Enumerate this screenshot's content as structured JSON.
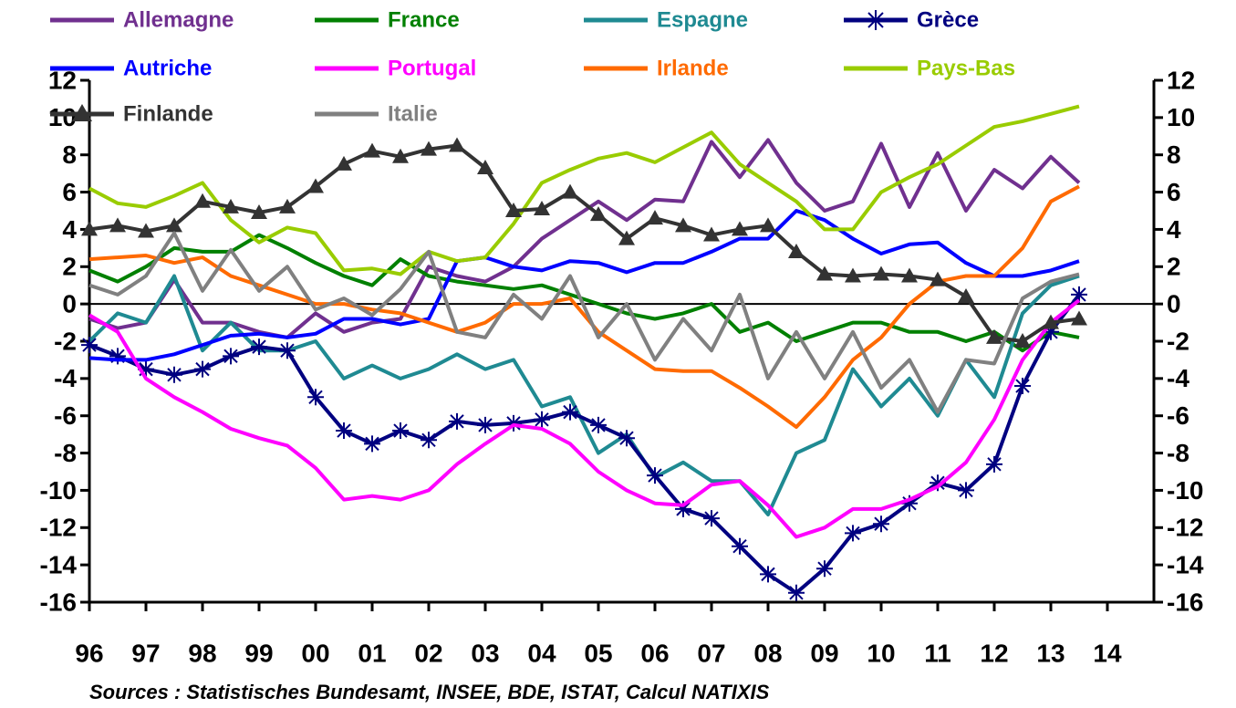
{
  "chart_data": {
    "type": "line",
    "source": "Sources : Statistisches Bundesamt, INSEE, BDE, ISTAT, Calcul NATIXIS",
    "x": [
      1996,
      1996.5,
      1997,
      1997.5,
      1998,
      1998.5,
      1999,
      1999.5,
      2000,
      2000.5,
      2001,
      2001.5,
      2002,
      2002.5,
      2003,
      2003.5,
      2004,
      2004.5,
      2005,
      2005.5,
      2006,
      2006.5,
      2007,
      2007.5,
      2008,
      2008.5,
      2009,
      2009.5,
      2010,
      2010.5,
      2011,
      2011.5,
      2012,
      2012.5,
      2013,
      2013.5
    ],
    "xlim": [
      1996,
      2014.8
    ],
    "xticks": [
      {
        "value": 1996,
        "label": "96"
      },
      {
        "value": 1997,
        "label": "97"
      },
      {
        "value": 1998,
        "label": "98"
      },
      {
        "value": 1999,
        "label": "99"
      },
      {
        "value": 2000,
        "label": "00"
      },
      {
        "value": 2001,
        "label": "01"
      },
      {
        "value": 2002,
        "label": "02"
      },
      {
        "value": 2003,
        "label": "03"
      },
      {
        "value": 2004,
        "label": "04"
      },
      {
        "value": 2005,
        "label": "05"
      },
      {
        "value": 2006,
        "label": "06"
      },
      {
        "value": 2007,
        "label": "07"
      },
      {
        "value": 2008,
        "label": "08"
      },
      {
        "value": 2009,
        "label": "09"
      },
      {
        "value": 2010,
        "label": "10"
      },
      {
        "value": 2011,
        "label": "11"
      },
      {
        "value": 2012,
        "label": "12"
      },
      {
        "value": 2013,
        "label": "13"
      },
      {
        "value": 2014,
        "label": "14"
      }
    ],
    "ylim": [
      -16,
      12
    ],
    "yticks": [
      -16,
      -14,
      -12,
      -10,
      -8,
      -6,
      -4,
      -2,
      0,
      2,
      4,
      6,
      8,
      10,
      12
    ],
    "right_axis_labels": true,
    "series": [
      {
        "name": "Allemagne",
        "color": "#70308f",
        "values": [
          -0.8,
          -1.3,
          -1,
          1.3,
          -1,
          -1,
          -1.5,
          -1.8,
          -0.5,
          -1.5,
          -1,
          -0.8,
          2,
          1.5,
          1.2,
          2,
          3.5,
          4.5,
          5.5,
          4.5,
          5.6,
          5.5,
          8.7,
          6.8,
          8.8,
          6.5,
          5,
          5.5,
          8.6,
          5.2,
          8.1,
          5,
          7.2,
          6.2,
          7.9,
          6.5
        ]
      },
      {
        "name": "France",
        "color": "#008000",
        "values": [
          1.8,
          1.2,
          2,
          3,
          2.8,
          2.8,
          3.7,
          3,
          2.2,
          1.5,
          1,
          2.4,
          1.5,
          1.2,
          1,
          0.8,
          1,
          0.5,
          0,
          -0.5,
          -0.8,
          -0.5,
          0,
          -1.5,
          -1,
          -2,
          -1.5,
          -1,
          -1,
          -1.5,
          -1.5,
          -2,
          -1.5,
          -2.5,
          -1.5,
          -1.8
        ]
      },
      {
        "name": "Espagne",
        "color": "#1f8a92",
        "values": [
          -2,
          -0.5,
          -1,
          1.5,
          -2.5,
          -1,
          -2.5,
          -2.5,
          -2,
          -4,
          -3.3,
          -4,
          -3.5,
          -2.7,
          -3.5,
          -3,
          -5.5,
          -5,
          -8,
          -7,
          -9.3,
          -8.5,
          -9.5,
          -9.5,
          -11.3,
          -8,
          -7.3,
          -3.5,
          -5.5,
          -4,
          -6,
          -3,
          -5,
          -0.5,
          1,
          1.5
        ]
      },
      {
        "name": "Grèce",
        "color": "#000080",
        "marker": "star",
        "values": [
          -2.2,
          -2.8,
          -3.5,
          -3.8,
          -3.5,
          -2.8,
          -2.3,
          -2.5,
          -5,
          -6.8,
          -7.5,
          -6.8,
          -7.3,
          -6.3,
          -6.5,
          -6.4,
          -6.2,
          -5.8,
          -6.5,
          -7.2,
          -9.2,
          -11,
          -11.5,
          -13,
          -14.5,
          -15.5,
          -14.2,
          -12.3,
          -11.8,
          -10.7,
          -9.6,
          -10,
          -8.6,
          -4.4,
          -1.5,
          0.5
        ]
      },
      {
        "name": "Autriche",
        "color": "#0000ff",
        "values": [
          -2.9,
          -3,
          -3,
          -2.7,
          -2.2,
          -1.7,
          -1.6,
          -1.8,
          -1.6,
          -0.8,
          -0.8,
          -1.1,
          -0.8,
          2.3,
          2.5,
          2,
          1.8,
          2.3,
          2.2,
          1.7,
          2.2,
          2.2,
          2.8,
          3.5,
          3.5,
          5,
          4.5,
          3.5,
          2.7,
          3.2,
          3.3,
          2.2,
          1.5,
          1.5,
          1.8,
          2.3
        ]
      },
      {
        "name": "Portugal",
        "color": "#ff00ff",
        "values": [
          -0.6,
          -1.5,
          -4,
          -5,
          -5.8,
          -6.7,
          -7.2,
          -7.6,
          -8.8,
          -10.5,
          -10.3,
          -10.5,
          -10,
          -8.6,
          -7.5,
          -6.5,
          -6.7,
          -7.5,
          -9,
          -10,
          -10.7,
          -10.8,
          -9.7,
          -9.5,
          -10.8,
          -12.5,
          -12,
          -11,
          -11,
          -10.5,
          -9.8,
          -8.5,
          -6.2,
          -3,
          -1,
          0.2
        ]
      },
      {
        "name": "Irlande",
        "color": "#ff6a00",
        "values": [
          2.4,
          2.5,
          2.6,
          2.2,
          2.5,
          1.5,
          1,
          0.5,
          0,
          0,
          -0.3,
          -0.5,
          -1,
          -1.5,
          -1,
          0,
          0,
          0.3,
          -1.5,
          -2.5,
          -3.5,
          -3.6,
          -3.6,
          -4.5,
          -5.5,
          -6.6,
          -5,
          -3,
          -1.8,
          0,
          1.2,
          1.5,
          1.5,
          3,
          5.5,
          6.3
        ]
      },
      {
        "name": "Pays-Bas",
        "color": "#99cc00",
        "values": [
          6.2,
          5.4,
          5.2,
          5.8,
          6.5,
          4.5,
          3.3,
          4.1,
          3.8,
          1.8,
          1.9,
          1.6,
          2.8,
          2.3,
          2.5,
          4.3,
          6.5,
          7.2,
          7.8,
          8.1,
          7.6,
          8.4,
          9.2,
          7.5,
          6.5,
          5.5,
          4,
          4,
          6,
          6.8,
          7.5,
          8.5,
          9.5,
          9.8,
          10.2,
          10.6
        ]
      },
      {
        "name": "Finlande",
        "color": "#333333",
        "marker": "triangle",
        "values": [
          4,
          4.2,
          3.9,
          4.2,
          5.5,
          5.2,
          4.9,
          5.2,
          6.3,
          7.5,
          8.2,
          7.9,
          8.3,
          8.5,
          7.3,
          5,
          5.1,
          6,
          4.8,
          3.5,
          4.6,
          4.2,
          3.7,
          4,
          4.2,
          2.8,
          1.6,
          1.5,
          1.6,
          1.5,
          1.3,
          0.4,
          -1.8,
          -2,
          -1,
          -0.8
        ]
      },
      {
        "name": "Italie",
        "color": "#808080",
        "values": [
          1,
          0.5,
          1.5,
          3.8,
          0.7,
          2.9,
          0.7,
          2,
          -0.3,
          0.3,
          -0.6,
          0.8,
          2.8,
          -1.5,
          -1.8,
          0.5,
          -0.8,
          1.5,
          -1.8,
          0,
          -3,
          -0.8,
          -2.5,
          0.5,
          -4,
          -1.5,
          -4,
          -1.5,
          -4.5,
          -3,
          -5.8,
          -3,
          -3.2,
          0.3,
          1.2,
          1.6
        ]
      }
    ]
  }
}
